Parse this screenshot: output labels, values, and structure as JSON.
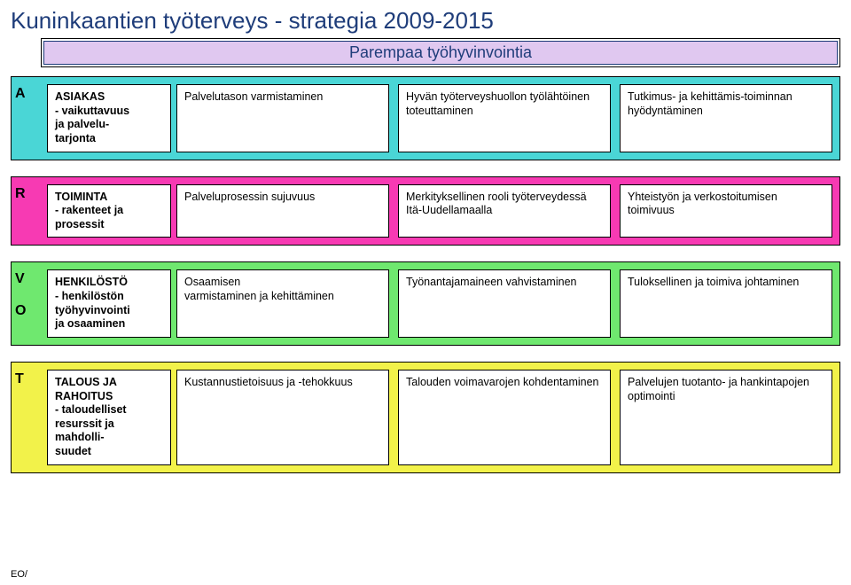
{
  "title": "Kuninkaantien työterveys - strategia 2009-2015",
  "subtitle": "Parempaa työhyvinvointia",
  "rows": [
    {
      "letter": "A",
      "bg": "#4ad6d6",
      "category": "ASIAKAS\n- vaikuttavuus\nja palvelu-\ntarjonta",
      "cells": [
        {
          "text": "Palvelutason varmistaminen"
        },
        {
          "text": "Hyvän työterveyshuollon työlähtöinen toteuttaminen"
        },
        {
          "text": "Tutkimus- ja kehittämis-toiminnan hyödyntäminen"
        }
      ]
    },
    {
      "letter": "R",
      "bg": "#f73ab3",
      "category": "TOIMINTA\n- rakenteet ja\nprosessit",
      "cells": [
        {
          "text": "Palveluprosessin sujuvuus"
        },
        {
          "text": "Merkityksellinen rooli työterveydessä Itä-Uudellamaalla"
        },
        {
          "text": "Yhteistyön ja verkostoitumisen toimivuus"
        }
      ]
    },
    {
      "letter": "V\n\nO",
      "bg": "#6fe86f",
      "category": "HENKILÖSTÖ\n- henkilöstön\ntyöhyvinvointi\nja osaaminen",
      "cells": [
        {
          "text": "Osaamisen\nvarmistaminen ja kehittäminen"
        },
        {
          "text": "Työnantajamaineen vahvistaminen"
        },
        {
          "text": "Tuloksellinen ja toimiva johtaminen"
        }
      ]
    },
    {
      "letter": "T",
      "bg": "#f2f24a",
      "category": "TALOUS JA RAHOITUS\n- taloudelliset resurssit ja mahdolli-\nsuudet",
      "cells": [
        {
          "text": "Kustannustietoisuus ja -tehokkuus"
        },
        {
          "text": "Talouden voimavarojen kohdentaminen"
        },
        {
          "text": "Palvelujen tuotanto- ja hankintapojen optimointi"
        }
      ]
    }
  ],
  "footer": "EO/"
}
